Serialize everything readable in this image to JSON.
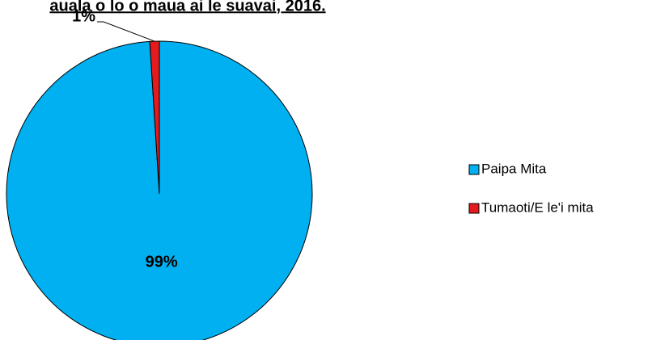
{
  "chart_data": {
    "type": "pie",
    "title": "auala o lo o maua ai le suavai, 2016.",
    "categories": [
      "Paipa Mita",
      "Tumaoti/E le'i mita"
    ],
    "values": [
      99,
      1
    ],
    "value_labels": [
      "99%",
      "1%"
    ],
    "colors": [
      "#00b0f0",
      "#e41a1c"
    ],
    "legend": "right"
  }
}
